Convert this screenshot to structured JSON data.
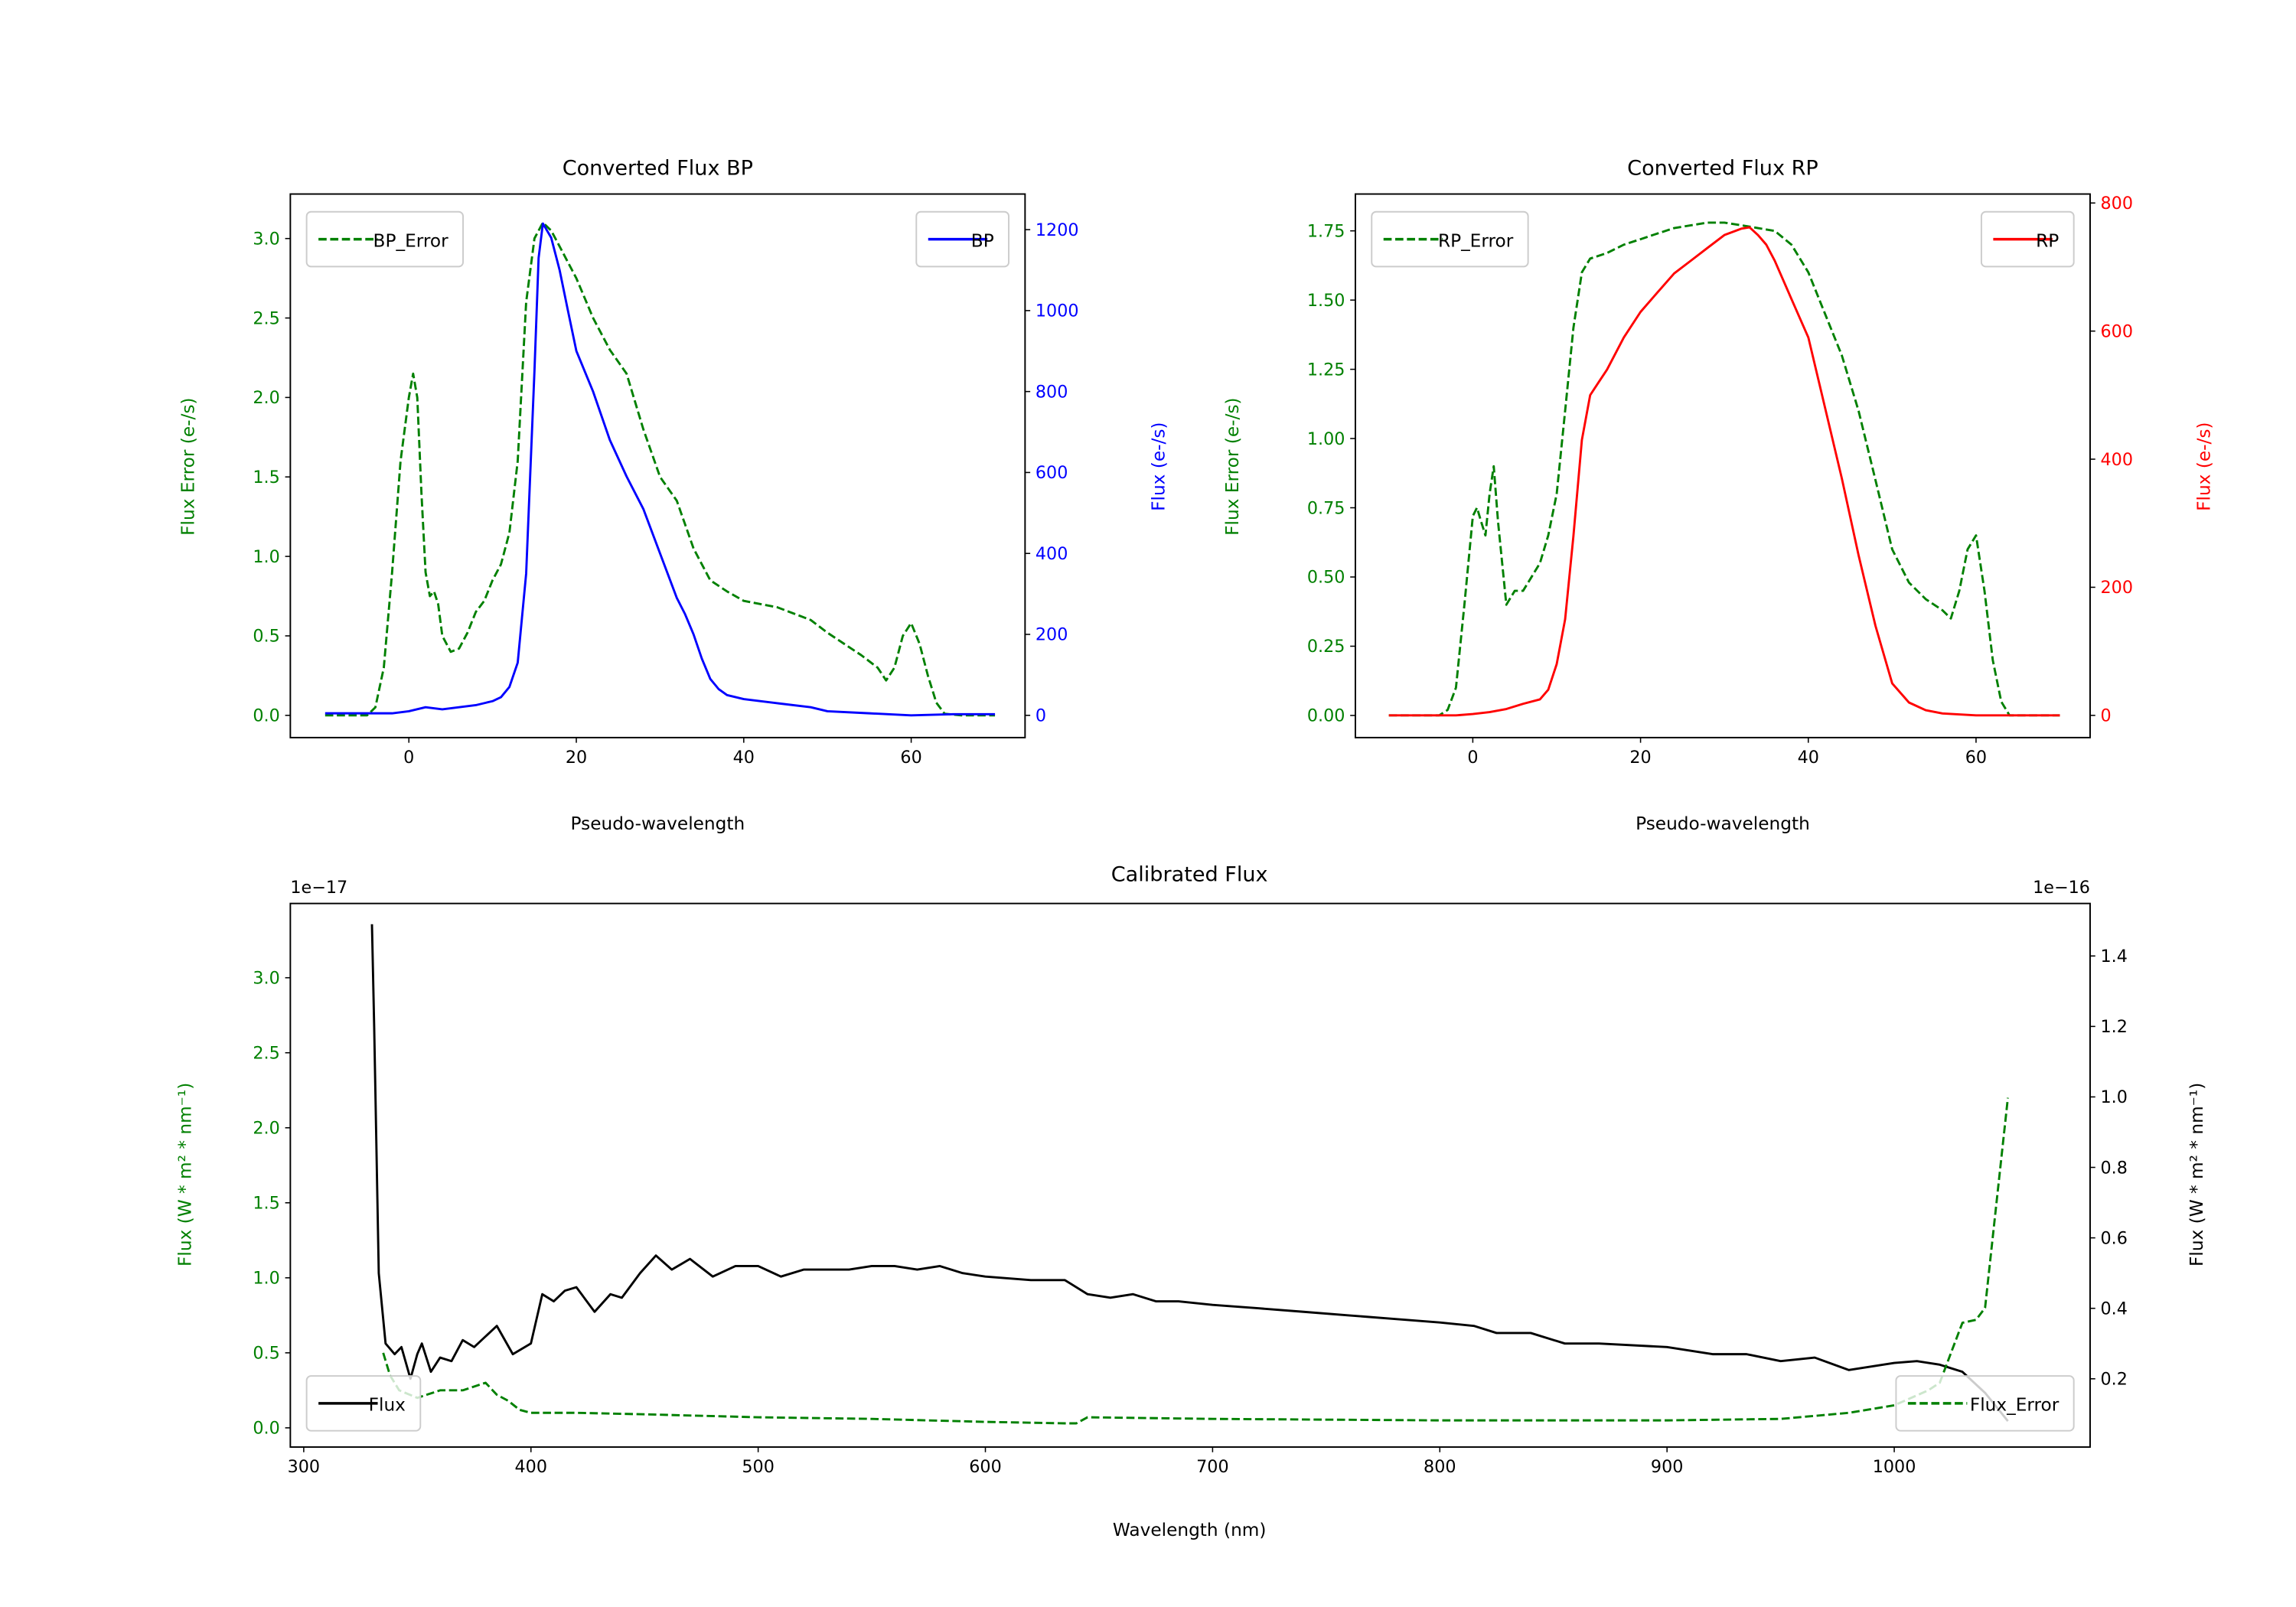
{
  "chart_data": [
    {
      "id": "bp",
      "type": "line",
      "title": "Converted Flux BP",
      "xlabel": "Pseudo-wavelength",
      "ylabel_left": "Flux Error (e-/s)",
      "ylabel_right": "Flux (e-/s)",
      "left_color": "#008000",
      "right_color": "#0000ff",
      "xlim": [
        -14.16,
        73.6
      ],
      "ylim_left": [
        -0.14,
        3.28
      ],
      "ylim_right": [
        -55,
        1288
      ],
      "xticks": [
        0,
        20,
        40,
        60
      ],
      "yticks_left": [
        0.0,
        0.5,
        1.0,
        1.5,
        2.0,
        2.5,
        3.0
      ],
      "yticks_left_labels": [
        "0.0",
        "0.5",
        "1.0",
        "1.5",
        "2.0",
        "2.5",
        "3.0"
      ],
      "yticks_right": [
        0,
        200,
        400,
        600,
        800,
        1000,
        1200
      ],
      "yticks_right_labels": [
        "0",
        "200",
        "400",
        "600",
        "800",
        "1000",
        "1200"
      ],
      "series": [
        {
          "name": "BP_Error",
          "axis": "left",
          "color": "#008000",
          "style": "dashed",
          "legend": "upper-left",
          "x": [
            -10,
            -5,
            -4,
            -3,
            -2,
            -1,
            0,
            0.5,
            1,
            1.5,
            2,
            2.5,
            3,
            3.5,
            4,
            5,
            6,
            7,
            8,
            9,
            10,
            11,
            12,
            13,
            14,
            15,
            16,
            17,
            18,
            20,
            22,
            24,
            26,
            28,
            30,
            32,
            34,
            36,
            38,
            40,
            44,
            48,
            50,
            52,
            54,
            56,
            57,
            58,
            59,
            60,
            61,
            62,
            63,
            64,
            66,
            70
          ],
          "y": [
            0,
            0,
            0.05,
            0.3,
            0.9,
            1.6,
            2.0,
            2.15,
            2.0,
            1.4,
            0.9,
            0.75,
            0.78,
            0.7,
            0.5,
            0.4,
            0.42,
            0.52,
            0.65,
            0.72,
            0.85,
            0.95,
            1.15,
            1.6,
            2.6,
            3.0,
            3.1,
            3.05,
            2.95,
            2.75,
            2.5,
            2.3,
            2.15,
            1.8,
            1.5,
            1.35,
            1.05,
            0.85,
            0.78,
            0.72,
            0.68,
            0.6,
            0.52,
            0.45,
            0.38,
            0.3,
            0.22,
            0.3,
            0.5,
            0.58,
            0.45,
            0.25,
            0.08,
            0.01,
            0,
            0
          ]
        },
        {
          "name": "BP",
          "axis": "right",
          "color": "#0000ff",
          "style": "solid",
          "legend": "upper-right",
          "x": [
            -10,
            -2,
            0,
            2,
            4,
            6,
            8,
            10,
            11,
            12,
            13,
            14,
            15,
            15.5,
            16,
            17,
            18,
            19,
            20,
            22,
            24,
            26,
            28,
            30,
            32,
            33,
            34,
            35,
            36,
            37,
            38,
            40,
            44,
            48,
            50,
            55,
            60,
            65,
            70
          ],
          "y": [
            5,
            5,
            10,
            20,
            15,
            20,
            25,
            35,
            45,
            70,
            130,
            350,
            850,
            1130,
            1215,
            1180,
            1100,
            1000,
            900,
            800,
            680,
            590,
            510,
            400,
            290,
            250,
            200,
            140,
            90,
            65,
            50,
            40,
            30,
            20,
            10,
            5,
            0,
            3,
            3
          ]
        }
      ]
    },
    {
      "id": "rp",
      "type": "line",
      "title": "Converted Flux RP",
      "xlabel": "Pseudo-wavelength",
      "ylabel_left": "Flux Error (e-/s)",
      "ylabel_right": "Flux (e-/s)",
      "left_color": "#008000",
      "right_color": "#ff0000",
      "xlim": [
        -14.0,
        73.6
      ],
      "ylim_left": [
        -0.08,
        1.883
      ],
      "ylim_right": [
        -34.7,
        814
      ],
      "xticks": [
        0,
        20,
        40,
        60
      ],
      "yticks_left": [
        0,
        0.25,
        0.5,
        0.75,
        1.0,
        1.25,
        1.5,
        1.75
      ],
      "yticks_left_labels": [
        "0.00",
        "0.25",
        "0.50",
        "0.75",
        "1.00",
        "1.25",
        "1.50",
        "1.75"
      ],
      "yticks_right": [
        0,
        200,
        400,
        600,
        800
      ],
      "yticks_right_labels": [
        "0",
        "200",
        "400",
        "600",
        "800"
      ],
      "series": [
        {
          "name": "RP_Error",
          "axis": "left",
          "color": "#008000",
          "style": "dashed",
          "legend": "upper-left",
          "x": [
            -10,
            -4,
            -3,
            -2,
            -1,
            0,
            0.5,
            1,
            1.5,
            2,
            2.5,
            3,
            3.5,
            4,
            5,
            6,
            7,
            8,
            9,
            10,
            11,
            12,
            13,
            14,
            16,
            18,
            20,
            22,
            24,
            26,
            28,
            30,
            32,
            34,
            36,
            38,
            40,
            42,
            44,
            46,
            48,
            50,
            52,
            54,
            56,
            57,
            58,
            59,
            60,
            61,
            62,
            63,
            64,
            70
          ],
          "y": [
            0,
            0,
            0.02,
            0.1,
            0.4,
            0.72,
            0.75,
            0.7,
            0.65,
            0.8,
            0.9,
            0.7,
            0.55,
            0.4,
            0.45,
            0.45,
            0.5,
            0.55,
            0.65,
            0.8,
            1.1,
            1.4,
            1.6,
            1.65,
            1.67,
            1.7,
            1.72,
            1.74,
            1.76,
            1.77,
            1.78,
            1.78,
            1.77,
            1.76,
            1.75,
            1.7,
            1.6,
            1.45,
            1.3,
            1.1,
            0.85,
            0.6,
            0.48,
            0.42,
            0.38,
            0.35,
            0.45,
            0.6,
            0.65,
            0.45,
            0.2,
            0.05,
            0,
            0
          ]
        },
        {
          "name": "RP",
          "axis": "right",
          "color": "#ff0000",
          "style": "solid",
          "legend": "upper-right",
          "x": [
            -10,
            -2,
            0,
            2,
            4,
            6,
            8,
            9,
            10,
            11,
            12,
            13,
            14,
            15,
            16,
            18,
            20,
            22,
            24,
            26,
            28,
            30,
            32,
            33,
            34,
            35,
            36,
            38,
            40,
            42,
            44,
            46,
            48,
            50,
            52,
            54,
            56,
            60,
            65,
            70
          ],
          "y": [
            0,
            0,
            2,
            5,
            10,
            18,
            25,
            40,
            80,
            150,
            280,
            430,
            500,
            520,
            540,
            590,
            630,
            660,
            690,
            710,
            730,
            750,
            760,
            762,
            750,
            735,
            710,
            650,
            590,
            480,
            370,
            250,
            140,
            50,
            20,
            8,
            3,
            0,
            0,
            0
          ]
        }
      ]
    },
    {
      "id": "cal",
      "type": "line",
      "title": "Calibrated Flux",
      "xlabel": "Wavelength (nm)",
      "ylabel_left": "Flux (W * m² * nm⁻¹)",
      "ylabel_right": "Flux (W * m² * nm⁻¹)",
      "left_color": "#008000",
      "right_color": "#000000",
      "offset_left": "1e−17",
      "offset_right": "1e−16",
      "xlim": [
        294.1,
        1086.2
      ],
      "ylim_left": [
        -0.128,
        3.495
      ],
      "ylim_right": [
        0.0063,
        1.549
      ],
      "xticks": [
        300,
        400,
        500,
        600,
        700,
        800,
        900,
        1000
      ],
      "yticks_left": [
        0.0,
        0.5,
        1.0,
        1.5,
        2.0,
        2.5,
        3.0
      ],
      "yticks_left_labels": [
        "0.0",
        "0.5",
        "1.0",
        "1.5",
        "2.0",
        "2.5",
        "3.0"
      ],
      "yticks_right": [
        0.2,
        0.4,
        0.6,
        0.8,
        1.0,
        1.2,
        1.4
      ],
      "yticks_right_labels": [
        "0.2",
        "0.4",
        "0.6",
        "0.8",
        "1.0",
        "1.2",
        "1.4"
      ],
      "series": [
        {
          "name": "Flux",
          "axis": "right",
          "color": "#000000",
          "style": "solid",
          "legend": "lower-left",
          "x": [
            330,
            331,
            333,
            336,
            340,
            343,
            347,
            350,
            352,
            356,
            360,
            365,
            370,
            375,
            385,
            392,
            400,
            405,
            410,
            415,
            420,
            428,
            435,
            440,
            448,
            455,
            462,
            470,
            480,
            490,
            500,
            510,
            520,
            530,
            540,
            550,
            560,
            570,
            580,
            590,
            600,
            620,
            635,
            645,
            655,
            665,
            675,
            685,
            700,
            720,
            740,
            760,
            780,
            800,
            815,
            825,
            840,
            855,
            870,
            900,
            920,
            935,
            950,
            965,
            980,
            1000,
            1010,
            1020,
            1030,
            1040,
            1050
          ],
          "y": [
            1.49,
            1.2,
            0.5,
            0.3,
            0.27,
            0.29,
            0.2,
            0.27,
            0.3,
            0.22,
            0.26,
            0.25,
            0.31,
            0.29,
            0.35,
            0.27,
            0.3,
            0.44,
            0.42,
            0.45,
            0.46,
            0.39,
            0.44,
            0.43,
            0.5,
            0.55,
            0.51,
            0.54,
            0.49,
            0.52,
            0.52,
            0.49,
            0.51,
            0.51,
            0.51,
            0.52,
            0.52,
            0.51,
            0.52,
            0.5,
            0.49,
            0.48,
            0.48,
            0.44,
            0.43,
            0.44,
            0.42,
            0.42,
            0.41,
            0.4,
            0.39,
            0.38,
            0.37,
            0.36,
            0.35,
            0.33,
            0.33,
            0.3,
            0.3,
            0.29,
            0.27,
            0.27,
            0.25,
            0.26,
            0.225,
            0.245,
            0.25,
            0.24,
            0.22,
            0.16,
            0.08
          ]
        },
        {
          "name": "Flux_Error",
          "axis": "left",
          "color": "#008000",
          "style": "dashed",
          "legend": "lower-right",
          "x": [
            335,
            338,
            342,
            350,
            360,
            370,
            380,
            385,
            390,
            395,
            400,
            420,
            450,
            500,
            550,
            600,
            635,
            640,
            645,
            700,
            800,
            900,
            950,
            980,
            1000,
            1015,
            1020,
            1025,
            1030,
            1036,
            1040,
            1045,
            1050
          ],
          "y": [
            0.5,
            0.35,
            0.25,
            0.2,
            0.25,
            0.25,
            0.3,
            0.22,
            0.18,
            0.12,
            0.1,
            0.1,
            0.09,
            0.07,
            0.06,
            0.04,
            0.03,
            0.03,
            0.07,
            0.06,
            0.05,
            0.05,
            0.06,
            0.1,
            0.15,
            0.25,
            0.3,
            0.5,
            0.7,
            0.72,
            0.8,
            1.5,
            2.2
          ]
        }
      ]
    }
  ]
}
